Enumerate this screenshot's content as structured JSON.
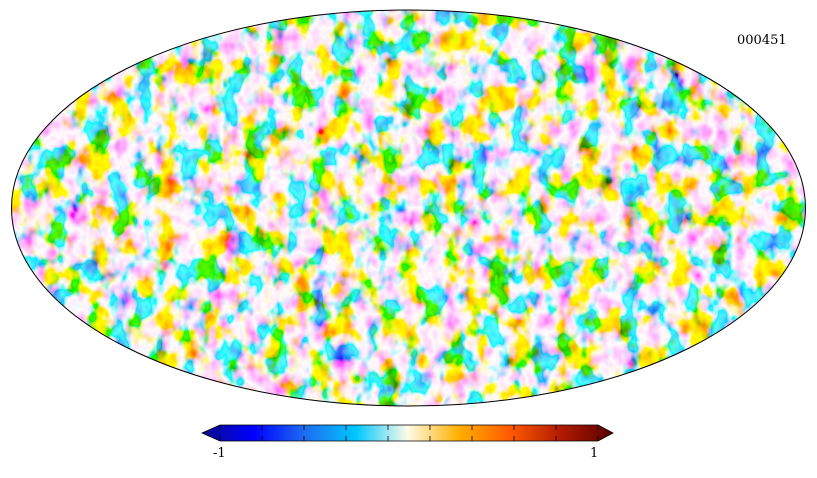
{
  "map": {
    "identifier": "000451",
    "projection": "mollweide",
    "colormap": [
      "#0a0a8a",
      "#0000ff",
      "#1e6cf0",
      "#00c8ff",
      "#fffbe8",
      "#ffb000",
      "#ff5a00",
      "#b01a00",
      "#5a0000"
    ]
  },
  "colorbar": {
    "min_label": "-1",
    "max_label": "1",
    "range": [
      -1,
      1
    ],
    "tick_count": 9
  }
}
